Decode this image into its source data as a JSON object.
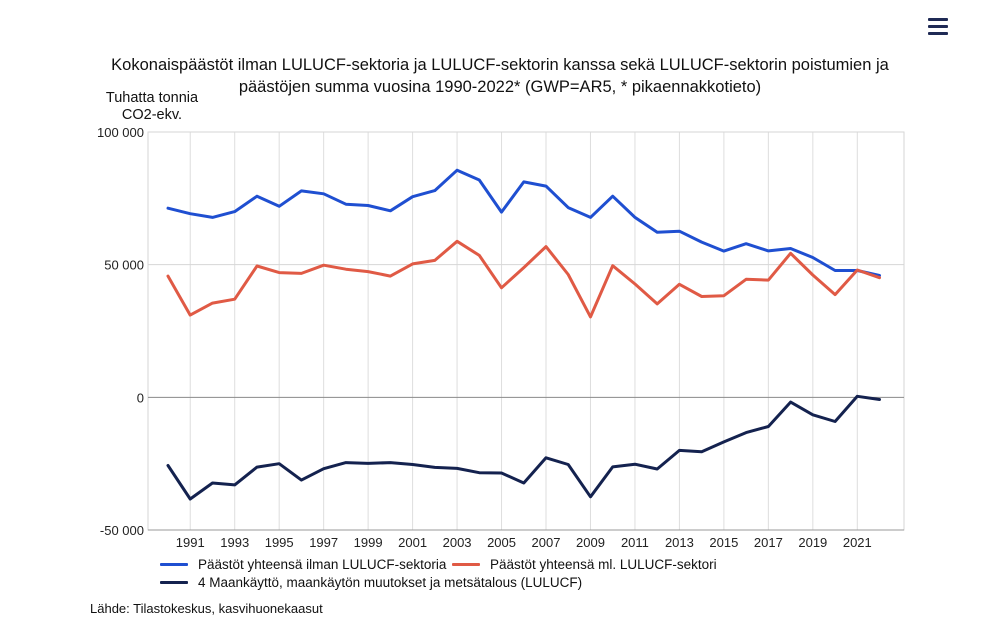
{
  "menu": {
    "icon": "hamburger-icon"
  },
  "chart_data": {
    "type": "line",
    "title": "Kokonaispäästöt ilman LULUCF-sektoria ja LULUCF-sektorin kanssa sekä LULUCF-sektorin poistumien ja päästöjen summa vuosina 1990-2022* (GWP=AR5, * pikaennakkotieto)",
    "ylabel": "Tuhatta tonnia CO2-ekv.",
    "xlabel": "",
    "ylim": [
      -50000,
      100000
    ],
    "yticks": [
      100000,
      50000,
      0,
      -50000
    ],
    "ytick_labels": [
      "100 000",
      "50 000",
      "0",
      "-50 000"
    ],
    "xlim": [
      1990,
      2022
    ],
    "xtick_labels": [
      "1991",
      "1993",
      "1995",
      "1997",
      "1999",
      "2001",
      "2003",
      "2005",
      "2007",
      "2009",
      "2011",
      "2013",
      "2015",
      "2017",
      "2019",
      "2021"
    ],
    "x": [
      1990,
      1991,
      1992,
      1993,
      1994,
      1995,
      1996,
      1997,
      1998,
      1999,
      2000,
      2001,
      2002,
      2003,
      2004,
      2005,
      2006,
      2007,
      2008,
      2009,
      2010,
      2011,
      2012,
      2013,
      2014,
      2015,
      2016,
      2017,
      2018,
      2019,
      2020,
      2021,
      2022
    ],
    "grid": true,
    "legend_position": "bottom",
    "series": [
      {
        "name": "Päästöt yhteensä ilman LULUCF-sektoria",
        "color": "#1f4fd1",
        "values": [
          71300,
          69200,
          67800,
          70000,
          75800,
          72000,
          77800,
          76700,
          72800,
          72300,
          70300,
          75600,
          77900,
          85600,
          81900,
          69800,
          81200,
          79600,
          71500,
          67800,
          75800,
          67800,
          62200,
          62600,
          58500,
          55100,
          57900,
          55200,
          56100,
          52700,
          47800,
          47800,
          45900
        ]
      },
      {
        "name": "Päästöt yhteensä ml. LULUCF-sektori",
        "color": "#e05a45",
        "values": [
          45700,
          31000,
          35500,
          37000,
          49500,
          47000,
          46700,
          49800,
          48300,
          47400,
          45700,
          50300,
          51600,
          58800,
          53500,
          41300,
          48900,
          56800,
          46300,
          30300,
          49600,
          42700,
          35200,
          42600,
          38000,
          38300,
          44500,
          44200,
          54300,
          46100,
          38700,
          48000,
          45100
        ]
      },
      {
        "name": "4 Maankäyttö, maankäytön muutokset ja metsätalous (LULUCF)",
        "color": "#14224f",
        "values": [
          -25700,
          -38300,
          -32300,
          -33000,
          -26300,
          -25000,
          -31200,
          -26900,
          -24600,
          -24900,
          -24600,
          -25300,
          -26400,
          -26800,
          -28400,
          -28500,
          -32300,
          -22800,
          -25300,
          -37500,
          -26200,
          -25200,
          -27000,
          -20000,
          -20500,
          -16800,
          -13300,
          -11000,
          -1800,
          -6600,
          -9100,
          400,
          -800
        ]
      }
    ]
  },
  "source": "Lähde: Tilastokeskus, kasvihuonekaasut"
}
